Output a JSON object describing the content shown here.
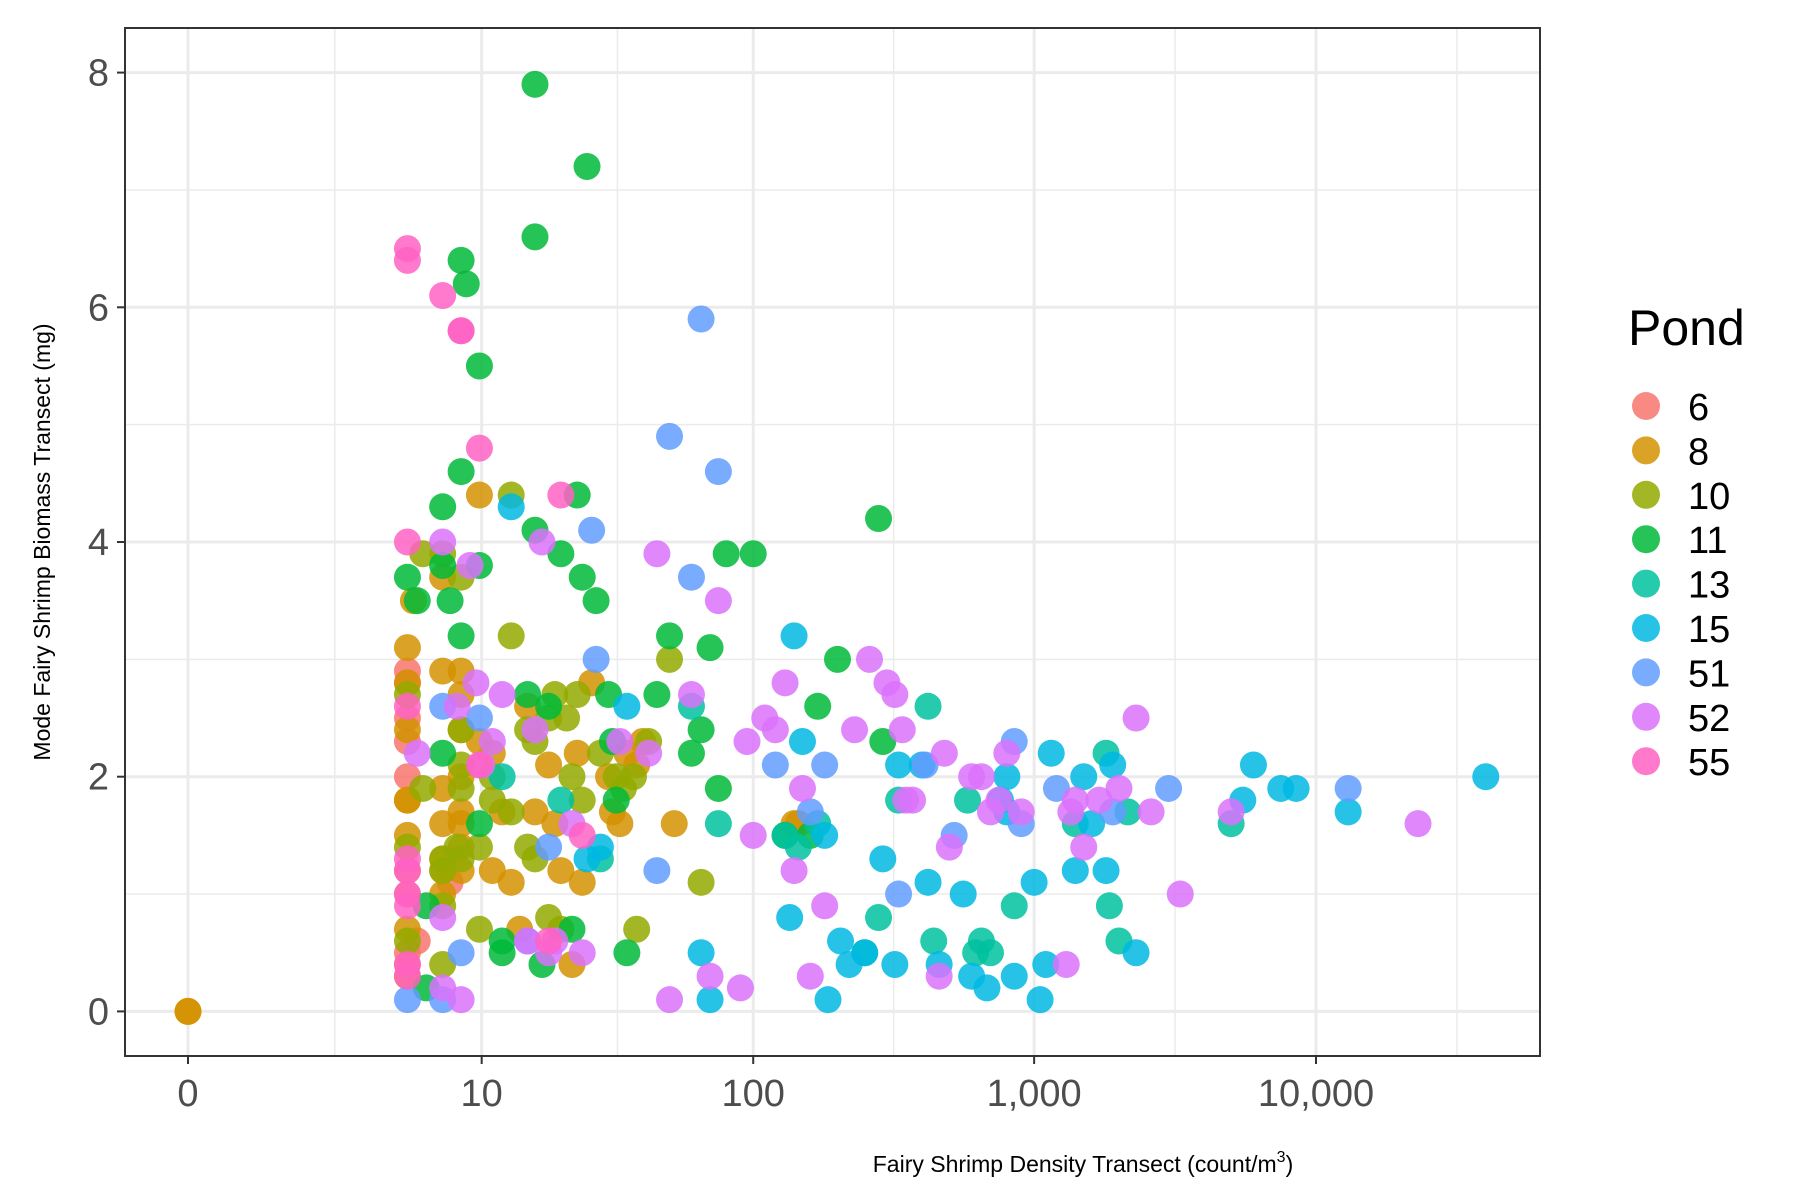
{
  "chart_data": {
    "type": "scatter",
    "title": "",
    "xlabel": "Fairy Shrimp Density Transect (count/m",
    "xlabel_superscript": "3",
    "xlabel_suffix": ")",
    "ylabel": "Mode Fairy Shrimp Biomass Transect (mg)",
    "x_scale": "pseudo-log10",
    "x_ticks": [
      0,
      10,
      100,
      1000,
      10000
    ],
    "x_tick_labels": [
      "0",
      "10",
      "100",
      "1,000",
      "10,000"
    ],
    "y_ticks": [
      0,
      2,
      4,
      6,
      8
    ],
    "y_tick_labels": [
      "0",
      "2",
      "4",
      "6",
      "8"
    ],
    "ylim": [
      -0.38,
      8.38
    ],
    "grid": true,
    "legend_title": "Pond",
    "legend_position": "right",
    "series": [
      {
        "name": "6",
        "color": "#F8766D",
        "x": [
          5,
          5,
          5,
          5,
          5,
          5,
          5,
          5.5,
          5,
          7.5,
          5
        ],
        "y": [
          2.9,
          2.8,
          2.5,
          2.3,
          2.0,
          1.2,
          1.0,
          0.6,
          0.5,
          1.1,
          0.4
        ]
      },
      {
        "name": "8",
        "color": "#D39200",
        "x": [
          0,
          0,
          5,
          5,
          5,
          5,
          5,
          5.3,
          5,
          5,
          5,
          7,
          7,
          7,
          7,
          7,
          7,
          7,
          8.3,
          8.3,
          8.3,
          8.3,
          8.3,
          8.3,
          8.3,
          8.3,
          9.8,
          9.8,
          11,
          11,
          12,
          13,
          14,
          15,
          16,
          18,
          19,
          20,
          22,
          23,
          24,
          26,
          30,
          31,
          33,
          35,
          38,
          40,
          52,
          140,
          145
        ],
        "y": [
          0,
          0,
          3.1,
          2.8,
          2.4,
          1.8,
          1.5,
          3.5,
          0.7,
          0.3,
          1.8,
          3.7,
          2.9,
          1.9,
          1.6,
          1.3,
          1.2,
          1.0,
          2.9,
          2.7,
          2.4,
          2.0,
          1.7,
          1.6,
          1.2,
          1.4,
          4.4,
          2.3,
          2.2,
          1.2,
          1.7,
          1.1,
          0.7,
          2.6,
          1.7,
          2.1,
          1.6,
          1.2,
          0.4,
          2.2,
          1.1,
          2.8,
          2.0,
          1.7,
          1.6,
          2.2,
          2.1,
          2.3,
          1.6,
          1.6,
          1.6
        ]
      },
      {
        "name": "10",
        "color": "#93AA00",
        "x": [
          5,
          5,
          5,
          5.8,
          5.8,
          7,
          7,
          7,
          7,
          7,
          8,
          8.3,
          8.3,
          8.3,
          8.3,
          8.3,
          9.8,
          9.8,
          11,
          11,
          13,
          13,
          13,
          15,
          15,
          16,
          16,
          18,
          18,
          19,
          20,
          21,
          22,
          23,
          24,
          28,
          32,
          34,
          37,
          38,
          42,
          50,
          65
        ],
        "y": [
          2.7,
          1.4,
          0.6,
          3.9,
          1.9,
          3.9,
          1.3,
          1.2,
          0.9,
          0.4,
          1.4,
          3.7,
          2.4,
          2.1,
          1.9,
          1.3,
          1.4,
          0.7,
          2.0,
          1.8,
          3.2,
          4.4,
          1.7,
          2.4,
          1.4,
          2.3,
          1.3,
          2.5,
          0.8,
          2.7,
          0.7,
          2.5,
          2.0,
          2.7,
          1.8,
          2.2,
          2.0,
          1.9,
          2.0,
          0.7,
          2.3,
          3.0,
          1.1
        ]
      },
      {
        "name": "11",
        "color": "#00BA38",
        "x": [
          5,
          5.5,
          6,
          6,
          7,
          7,
          7,
          7.5,
          8.3,
          8.3,
          8.3,
          8.7,
          9.8,
          9.8,
          9.8,
          12,
          12,
          15,
          16,
          16,
          16,
          17,
          18,
          20,
          22,
          23,
          24,
          25,
          27,
          30,
          31,
          32,
          35,
          45,
          50,
          60,
          65,
          70,
          75,
          80,
          100,
          130,
          160,
          170,
          200,
          280,
          290
        ],
        "y": [
          3.7,
          3.5,
          0.9,
          0.2,
          4.3,
          3.8,
          2.2,
          3.5,
          6.4,
          4.6,
          3.2,
          6.2,
          5.5,
          3.8,
          1.6,
          0.5,
          0.6,
          2.7,
          7.9,
          6.6,
          4.1,
          0.4,
          2.6,
          3.9,
          0.7,
          4.4,
          3.7,
          7.2,
          3.5,
          2.7,
          2.3,
          1.8,
          0.5,
          2.7,
          3.2,
          2.2,
          2.4,
          3.1,
          1.9,
          3.9,
          3.9,
          1.5,
          1.5,
          2.6,
          3.0,
          4.2,
          2.3
        ]
      },
      {
        "name": "13",
        "color": "#00C19F",
        "x": [
          12,
          20,
          28,
          60,
          75,
          130,
          145,
          170,
          250,
          280,
          330,
          420,
          440,
          580,
          620,
          650,
          700,
          850,
          1400,
          1800,
          1850,
          2000,
          2150,
          5000
        ],
        "y": [
          2.0,
          1.8,
          1.3,
          2.6,
          1.6,
          1.5,
          1.4,
          1.6,
          0.5,
          0.8,
          1.8,
          2.6,
          0.6,
          1.8,
          0.5,
          0.6,
          0.5,
          0.9,
          1.6,
          2.2,
          0.9,
          0.6,
          1.7,
          1.6
        ]
      },
      {
        "name": "15",
        "color": "#00B9E3",
        "x": [
          13,
          25,
          28,
          35,
          65,
          70,
          135,
          140,
          150,
          180,
          185,
          205,
          220,
          250,
          290,
          320,
          330,
          400,
          420,
          460,
          560,
          600,
          680,
          760,
          800,
          850,
          1000,
          1100,
          1400,
          1500,
          1600,
          1800,
          1900,
          2300,
          5500,
          6000,
          7500,
          8500,
          13000,
          40000,
          800,
          1050,
          1150
        ],
        "y": [
          4.3,
          1.3,
          1.4,
          2.6,
          0.5,
          0.1,
          0.8,
          3.2,
          2.3,
          1.5,
          0.1,
          0.6,
          0.4,
          0.5,
          1.3,
          0.4,
          2.1,
          2.1,
          1.1,
          0.4,
          1.0,
          0.3,
          0.2,
          1.8,
          2.0,
          0.3,
          1.1,
          0.4,
          1.2,
          2.0,
          1.6,
          1.2,
          2.1,
          0.5,
          1.8,
          2.1,
          1.9,
          1.9,
          1.7,
          2.0,
          1.7,
          0.1,
          2.2
        ]
      },
      {
        "name": "51",
        "color": "#619CFF",
        "x": [
          5,
          7,
          7,
          8.3,
          9.8,
          15,
          18,
          26,
          27,
          45,
          50,
          60,
          65,
          75,
          120,
          160,
          180,
          330,
          410,
          520,
          850,
          900,
          1200,
          1900,
          3000,
          13000
        ],
        "y": [
          0.1,
          2.6,
          0.1,
          0.5,
          2.5,
          0.6,
          1.4,
          4.1,
          3.0,
          1.2,
          4.9,
          3.7,
          5.9,
          4.6,
          2.1,
          1.7,
          2.1,
          1.0,
          2.1,
          1.5,
          2.3,
          1.6,
          1.9,
          1.7,
          1.9,
          1.9
        ]
      },
      {
        "name": "52",
        "color": "#DB72FB",
        "x": [
          5.5,
          7,
          7,
          7,
          8,
          8.3,
          9,
          9.5,
          10,
          11,
          12,
          15,
          16,
          17,
          18,
          19,
          22,
          24,
          33,
          42,
          45,
          50,
          60,
          70,
          75,
          90,
          95,
          100,
          110,
          120,
          130,
          140,
          150,
          160,
          180,
          230,
          260,
          300,
          320,
          340,
          350,
          370,
          460,
          480,
          500,
          600,
          650,
          700,
          750,
          800,
          900,
          1300,
          1350,
          1400,
          1500,
          1700,
          2000,
          2300,
          2600,
          3300,
          5000,
          23000
        ],
        "y": [
          2.2,
          4.0,
          0.2,
          0.8,
          2.6,
          0.1,
          3.8,
          2.8,
          2.1,
          2.3,
          2.7,
          0.6,
          2.4,
          4.0,
          0.5,
          0.6,
          1.6,
          0.5,
          2.3,
          2.2,
          3.9,
          0.1,
          2.7,
          0.3,
          3.5,
          0.2,
          2.3,
          1.5,
          2.5,
          2.4,
          2.8,
          1.2,
          1.9,
          0.3,
          0.9,
          2.4,
          3.0,
          2.8,
          2.7,
          2.4,
          1.8,
          1.8,
          0.3,
          2.2,
          1.4,
          2.0,
          2.0,
          1.7,
          1.8,
          2.2,
          1.7,
          0.4,
          1.7,
          1.8,
          1.4,
          1.8,
          1.9,
          2.5,
          1.7,
          1.0,
          1.7,
          1.6
        ]
      },
      {
        "name": "55",
        "color": "#FF61C3",
        "x": [
          5,
          5,
          5,
          5,
          5,
          5,
          5,
          5,
          5,
          5,
          7,
          8.3,
          8.3,
          9.8,
          9.8,
          18,
          20,
          24
        ],
        "y": [
          6.5,
          6.4,
          4.0,
          2.6,
          1.3,
          1.2,
          1.0,
          0.9,
          0.4,
          0.3,
          6.1,
          5.8,
          5.8,
          4.8,
          2.1,
          0.6,
          4.4,
          1.5
        ]
      }
    ]
  }
}
